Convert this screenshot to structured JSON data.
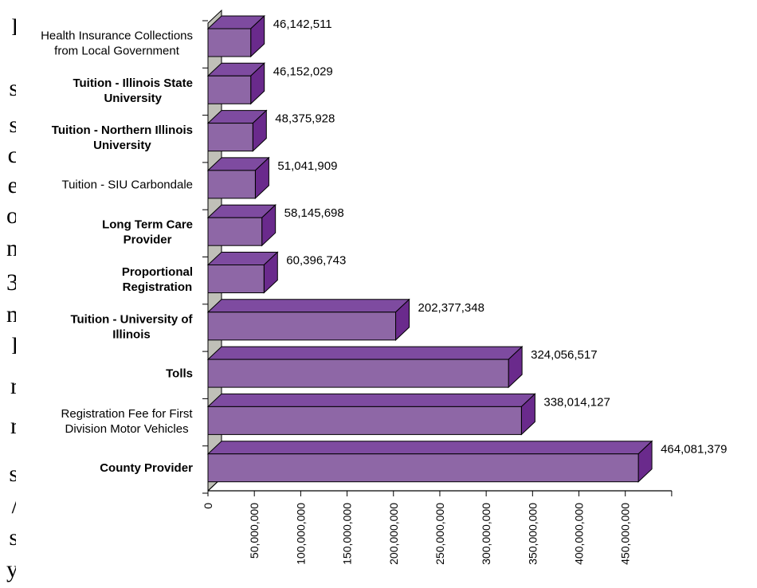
{
  "page_text": {
    "glyphs": [
      "l",
      "s",
      "s",
      "c",
      "e",
      "o",
      "n",
      "3",
      "n",
      "l",
      "r",
      "r",
      "s",
      "/",
      "s",
      "y"
    ]
  },
  "chart_data": {
    "type": "bar",
    "orientation": "horizontal",
    "three_d": true,
    "title": "",
    "xlabel": "",
    "ylabel": "",
    "bar_color": "#8e67a6",
    "bar_side_color": "#6a2a8c",
    "bar_top_color": "#7e4ba0",
    "wall_color": "#c0c0b8",
    "xlim": [
      0,
      500000000
    ],
    "x_ticks": [
      0,
      50000000,
      100000000,
      150000000,
      200000000,
      250000000,
      300000000,
      350000000,
      400000000,
      450000000
    ],
    "x_tick_labels": [
      "0",
      "50,000,000",
      "100,000,000",
      "150,000,000",
      "200,000,000",
      "250,000,000",
      "300,000,000",
      "350,000,000",
      "400,000,000",
      "450,000,000"
    ],
    "categories": [
      [
        "Health Insurance Collections",
        "from Local Government"
      ],
      [
        "Tuition - Illinois State",
        "University"
      ],
      [
        "Tuition - Northern Illinois",
        "University"
      ],
      [
        "Tuition - SIU Carbondale"
      ],
      [
        "Long Term Care",
        "Provider"
      ],
      [
        "Proportional",
        "Registration"
      ],
      [
        "Tuition - University of",
        "Illinois"
      ],
      [
        "Tolls"
      ],
      [
        "Registration Fee for First",
        "Division Motor Vehicles"
      ],
      [
        "County Provider"
      ]
    ],
    "category_bold": [
      false,
      true,
      true,
      false,
      true,
      true,
      true,
      true,
      false,
      true
    ],
    "values": [
      46142511,
      46152029,
      48375928,
      51041909,
      58145698,
      60396743,
      202377348,
      324056517,
      338014127,
      464081379
    ],
    "value_labels": [
      "46,142,511",
      "46,152,029",
      "48,375,928",
      "51,041,909",
      "58,145,698",
      "60,396,743",
      "202,377,348",
      "324,056,517",
      "338,014,127",
      "464,081,379"
    ]
  }
}
